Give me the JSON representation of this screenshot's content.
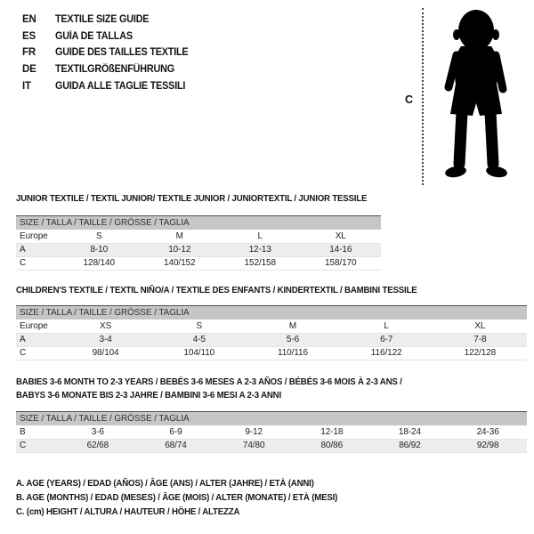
{
  "colors": {
    "table_header_bg": "#c6c6c6",
    "table_header_top_border": "#4e4e4e",
    "shaded_row_bg": "#ededed",
    "text": "#1a1a1a",
    "silhouette": "#000000"
  },
  "languages": [
    {
      "code": "EN",
      "title": "TEXTILE SIZE GUIDE"
    },
    {
      "code": "ES",
      "title": "GUÍA DE TALLAS"
    },
    {
      "code": "FR",
      "title": "GUIDE DES TAILLES TEXTILE"
    },
    {
      "code": "DE",
      "title": "TEXTILGRÖßENFÜHRUNG"
    },
    {
      "code": "IT",
      "title": "GUIDA ALLE TAGLIE TESSILI"
    }
  ],
  "figure": {
    "label": "C",
    "icon": "toddler-silhouette"
  },
  "sections": [
    {
      "heading": "JUNIOR TEXTILE / TEXTIL JUNIOR/ TEXTILE JUNIOR / JUNIORTEXTIL / JUNIOR TESSILE",
      "size_header": "SIZE / TALLA / TAILLE / GRÖSSE / TAGLIA",
      "rows": [
        {
          "label": "Europe",
          "values": [
            "S",
            "M",
            "L",
            "XL"
          ],
          "shaded": false
        },
        {
          "label": "A",
          "values": [
            "8-10",
            "10-12",
            "12-13",
            "14-16"
          ],
          "shaded": true
        },
        {
          "label": "C",
          "values": [
            "128/140",
            "140/152",
            "152/158",
            "158/170"
          ],
          "shaded": false
        }
      ]
    },
    {
      "heading": "CHILDREN'S TEXTILE / TEXTIL NIÑO/A / TEXTILE DES ENFANTS / KINDERTEXTIL / BAMBINI TESSILE",
      "size_header": "SIZE / TALLA / TAILLE / GRÖSSE / TAGLIA",
      "rows": [
        {
          "label": "Europe",
          "values": [
            "XS",
            "S",
            "M",
            "L",
            "XL"
          ],
          "shaded": false
        },
        {
          "label": "A",
          "values": [
            "3-4",
            "4-5",
            "5-6",
            "6-7",
            "7-8"
          ],
          "shaded": true
        },
        {
          "label": "C",
          "values": [
            "98/104",
            "104/110",
            "110/116",
            "116/122",
            "122/128"
          ],
          "shaded": false
        }
      ]
    },
    {
      "heading": "BABIES 3-6 MONTH TO 2-3 YEARS / BEBÉS 3-6 MESES A 2-3 AÑOS / BÉBÉS 3-6 MOIS À 2-3 ANS /",
      "heading2": "BABYS 3-6 MONATE BIS 2-3 JAHRE / BAMBINI 3-6 MESI A 2-3 ANNI",
      "size_header": "SIZE / TALLA / TAILLE / GRÖSSE / TAGLIA",
      "rows": [
        {
          "label": "B",
          "values": [
            "3-6",
            "6-9",
            "9-12",
            "12-18",
            "18-24",
            "24-36"
          ],
          "shaded": false
        },
        {
          "label": "C",
          "values": [
            "62/68",
            "68/74",
            "74/80",
            "80/86",
            "86/92",
            "92/98"
          ],
          "shaded": true
        }
      ]
    }
  ],
  "footnotes": [
    "A. AGE (YEARS) / EDAD (AÑOS) / ÂGE (ANS) / ALTER (JAHRE) / ETÀ (ANNI)",
    "B. AGE (MONTHS) / EDAD (MESES) / ÂGE (MOIS) / ALTER (MONATE) / ETÀ (MESI)",
    "C. (cm) HEIGHT / ALTURA / HAUTEUR / HÖHE / ALTEZZA"
  ]
}
